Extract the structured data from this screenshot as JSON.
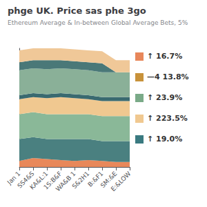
{
  "chart_data": {
    "type": "area",
    "title": "phge UK. Price sas phe 3go",
    "subtitle": "Ethereum Average & In-between Global Average Bets, 5%",
    "categories": [
      "Jan 1",
      "SS4&S",
      "KA&L:1",
      "1S:B&F",
      "WA&B 1",
      "S&2H1",
      "B:&F1",
      "SM:&E",
      "E:&LOW"
    ],
    "series": [
      {
        "color": "#e8885a",
        "values": [
          0.6,
          0.9,
          0.8,
          0.7,
          0.6,
          0.7,
          0.6,
          0.5,
          0.5
        ]
      },
      {
        "color": "#4a8080",
        "values": [
          2.2,
          2.1,
          2.0,
          2.1,
          2.2,
          2.1,
          2.0,
          2.1,
          2.1
        ]
      },
      {
        "color": "#8ab898",
        "values": [
          2.5,
          2.5,
          2.5,
          2.5,
          2.5,
          2.5,
          2.5,
          2.5,
          2.5
        ]
      },
      {
        "color": "#f0c890",
        "values": [
          1.5,
          1.5,
          1.6,
          1.7,
          1.6,
          1.5,
          1.5,
          1.5,
          1.5
        ]
      },
      {
        "color": "#3a6a70",
        "values": [
          0.4,
          0.4,
          0.4,
          0.4,
          0.4,
          0.4,
          0.4,
          0.4,
          0.4
        ]
      },
      {
        "color": "#8ab098",
        "values": [
          2.5,
          2.5,
          2.5,
          2.5,
          2.5,
          2.5,
          2.5,
          2.5,
          2.5
        ]
      },
      {
        "color": "#4a7878",
        "values": [
          0.8,
          0.8,
          0.9,
          0.8,
          0.8,
          0.8,
          0.9,
          0.0,
          0.0
        ]
      },
      {
        "color": "#f0c898",
        "values": [
          1.2,
          1.2,
          1.2,
          1.2,
          1.2,
          1.2,
          1.2,
          1.2,
          1.2
        ]
      }
    ],
    "stacked": true,
    "ylim": [
      0,
      11.9
    ],
    "tick_labels": "x",
    "grid": false,
    "annotations": [
      {
        "text": "↑ 16.7%",
        "color": "#e8875a"
      },
      {
        "text": "—4 13.8%",
        "color": "#c8923a"
      },
      {
        "text": "↑ 23.9%",
        "color": "#7aaa88"
      },
      {
        "text": "↑ 223.5%",
        "color": "#f0c890"
      },
      {
        "text": "↑ 19.0%",
        "color": "#3a7a80"
      }
    ]
  }
}
